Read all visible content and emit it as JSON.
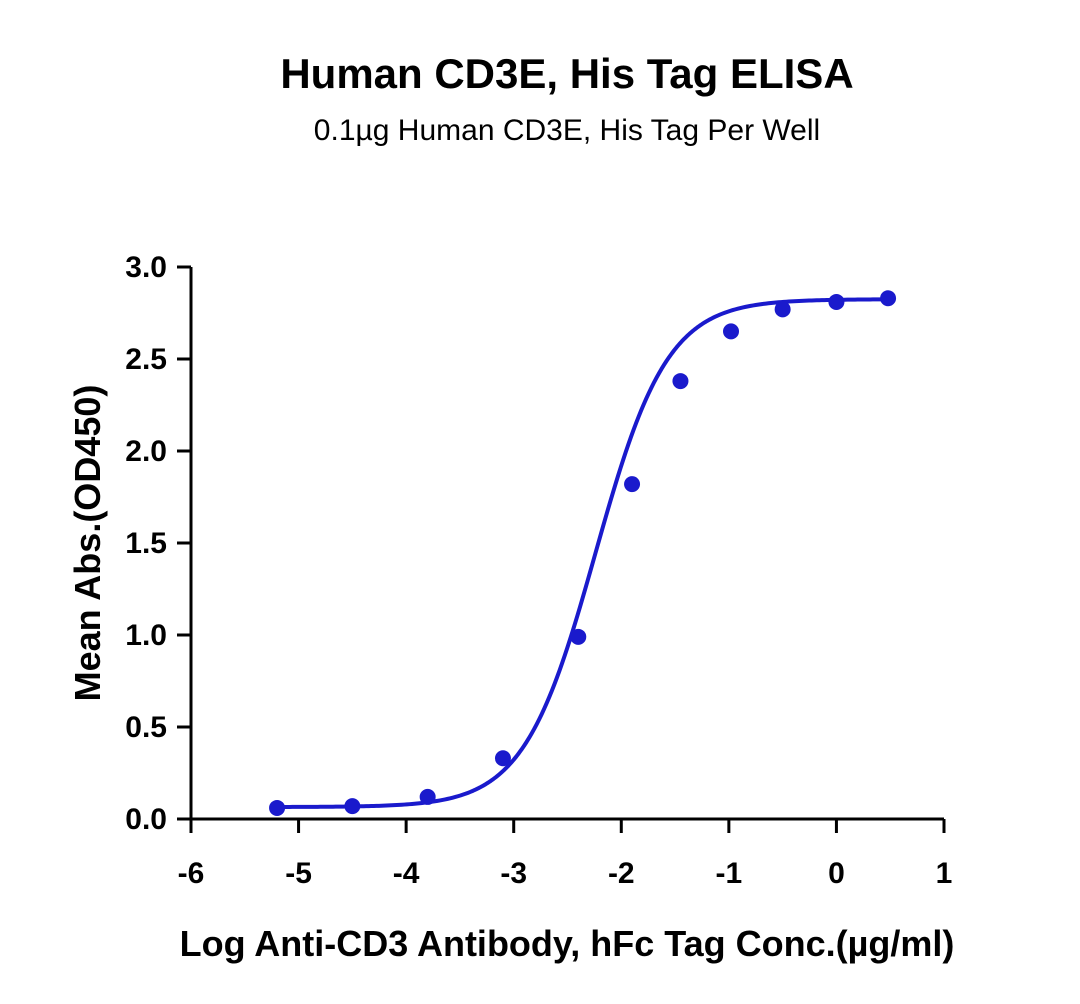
{
  "chart_data": {
    "type": "scatter",
    "title": "Human CD3E, His Tag ELISA",
    "subtitle": "0.1µg Human CD3E, His Tag Per Well",
    "xlabel": "Log Anti-CD3 Antibody, hFc Tag Conc.(µg/ml)",
    "ylabel": "Mean Abs.(OD450)",
    "xlim": [
      -6,
      1
    ],
    "ylim": [
      0,
      3
    ],
    "x_ticks": [
      -6,
      -5,
      -4,
      -3,
      -2,
      -1,
      0,
      1
    ],
    "x_tick_labels": [
      "-6",
      "-5",
      "-4",
      "-3",
      "-2",
      "-1",
      "0",
      "1"
    ],
    "y_ticks": [
      0,
      0.5,
      1,
      1.5,
      2,
      2.5,
      3
    ],
    "y_tick_labels": [
      "0.0",
      "0.5",
      "1.0",
      "1.5",
      "2.0",
      "2.5",
      "3.0"
    ],
    "grid": false,
    "series": [
      {
        "color": "#1a1acc",
        "x": [
          -5.2,
          -4.5,
          -3.8,
          -3.1,
          -2.4,
          -1.9,
          -1.45,
          -0.98,
          -0.5,
          0.0,
          0.48
        ],
        "y": [
          0.06,
          0.07,
          0.12,
          0.33,
          0.99,
          1.82,
          2.38,
          2.65,
          2.77,
          2.81,
          2.83
        ],
        "fit": "4PL sigmoid",
        "fit_params": {
          "bottom": 0.065,
          "top": 2.825,
          "logEC50": -2.24,
          "hill": 1.3
        }
      }
    ]
  }
}
